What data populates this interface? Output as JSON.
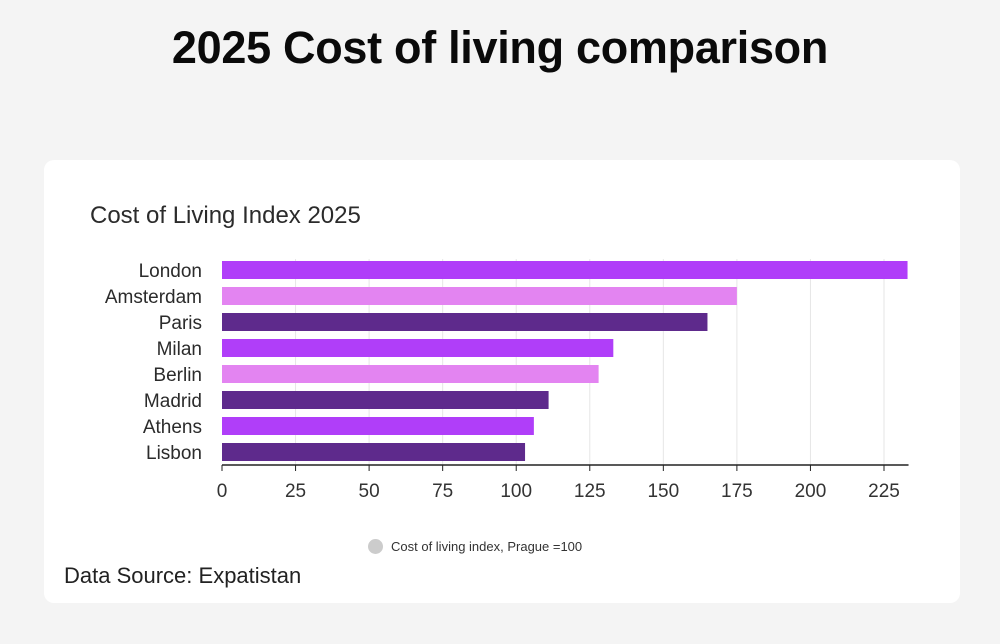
{
  "page": {
    "title": "2025 Cost of living comparison",
    "source": "Data Source: Expatistan"
  },
  "chart_data": {
    "type": "bar",
    "orientation": "horizontal",
    "title": "Cost of Living Index 2025",
    "xlabel": "",
    "ylabel": "",
    "categories": [
      "London",
      "Amsterdam",
      "Paris",
      "Milan",
      "Berlin",
      "Madrid",
      "Athens",
      "Lisbon"
    ],
    "values": [
      233,
      175,
      165,
      133,
      128,
      111,
      106,
      103
    ],
    "colors": [
      "#b03ef9",
      "#e384f1",
      "#5e2a8c",
      "#b03ef9",
      "#e384f1",
      "#5e2a8c",
      "#b03ef9",
      "#5e2a8c"
    ],
    "xlim": [
      0,
      233
    ],
    "xticks": [
      0,
      25,
      50,
      75,
      100,
      125,
      150,
      175,
      200,
      225
    ],
    "grid": true,
    "legend": {
      "position": "bottom",
      "entries": [
        {
          "label": "Cost of living index, Prague =100",
          "color": "#cccccc"
        }
      ]
    }
  }
}
